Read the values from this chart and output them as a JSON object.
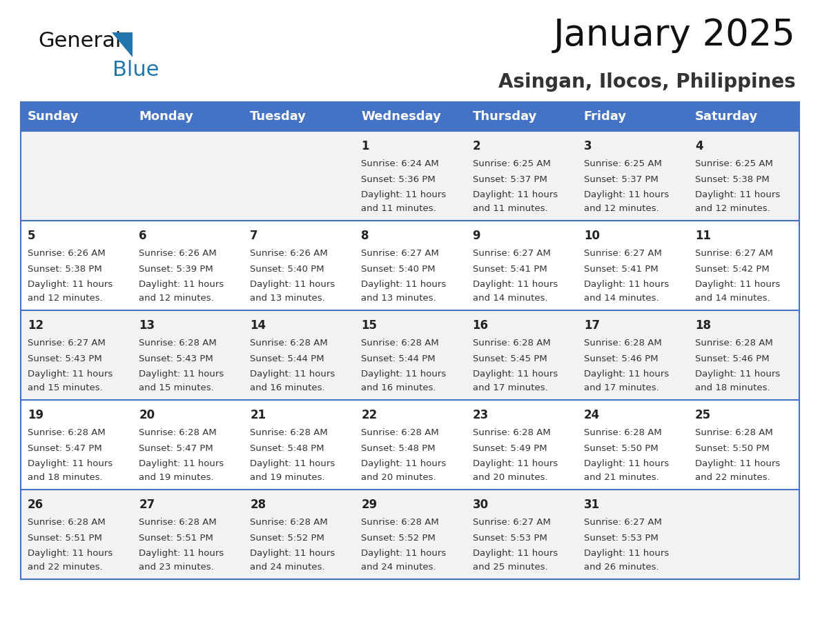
{
  "title": "January 2025",
  "subtitle": "Asingan, Ilocos, Philippines",
  "days_of_week": [
    "Sunday",
    "Monday",
    "Tuesday",
    "Wednesday",
    "Thursday",
    "Friday",
    "Saturday"
  ],
  "header_bg": "#4472C4",
  "header_text": "#FFFFFF",
  "row_bg_odd": "#F2F2F2",
  "row_bg_even": "#FFFFFF",
  "separator_color": "#4472C4",
  "calendar": [
    [
      null,
      null,
      null,
      {
        "day": 1,
        "sunrise": "6:24 AM",
        "sunset": "5:36 PM",
        "daylight": "11 hours and 11 minutes."
      },
      {
        "day": 2,
        "sunrise": "6:25 AM",
        "sunset": "5:37 PM",
        "daylight": "11 hours and 11 minutes."
      },
      {
        "day": 3,
        "sunrise": "6:25 AM",
        "sunset": "5:37 PM",
        "daylight": "11 hours and 12 minutes."
      },
      {
        "day": 4,
        "sunrise": "6:25 AM",
        "sunset": "5:38 PM",
        "daylight": "11 hours and 12 minutes."
      }
    ],
    [
      {
        "day": 5,
        "sunrise": "6:26 AM",
        "sunset": "5:38 PM",
        "daylight": "11 hours and 12 minutes."
      },
      {
        "day": 6,
        "sunrise": "6:26 AM",
        "sunset": "5:39 PM",
        "daylight": "11 hours and 12 minutes."
      },
      {
        "day": 7,
        "sunrise": "6:26 AM",
        "sunset": "5:40 PM",
        "daylight": "11 hours and 13 minutes."
      },
      {
        "day": 8,
        "sunrise": "6:27 AM",
        "sunset": "5:40 PM",
        "daylight": "11 hours and 13 minutes."
      },
      {
        "day": 9,
        "sunrise": "6:27 AM",
        "sunset": "5:41 PM",
        "daylight": "11 hours and 14 minutes."
      },
      {
        "day": 10,
        "sunrise": "6:27 AM",
        "sunset": "5:41 PM",
        "daylight": "11 hours and 14 minutes."
      },
      {
        "day": 11,
        "sunrise": "6:27 AM",
        "sunset": "5:42 PM",
        "daylight": "11 hours and 14 minutes."
      }
    ],
    [
      {
        "day": 12,
        "sunrise": "6:27 AM",
        "sunset": "5:43 PM",
        "daylight": "11 hours and 15 minutes."
      },
      {
        "day": 13,
        "sunrise": "6:28 AM",
        "sunset": "5:43 PM",
        "daylight": "11 hours and 15 minutes."
      },
      {
        "day": 14,
        "sunrise": "6:28 AM",
        "sunset": "5:44 PM",
        "daylight": "11 hours and 16 minutes."
      },
      {
        "day": 15,
        "sunrise": "6:28 AM",
        "sunset": "5:44 PM",
        "daylight": "11 hours and 16 minutes."
      },
      {
        "day": 16,
        "sunrise": "6:28 AM",
        "sunset": "5:45 PM",
        "daylight": "11 hours and 17 minutes."
      },
      {
        "day": 17,
        "sunrise": "6:28 AM",
        "sunset": "5:46 PM",
        "daylight": "11 hours and 17 minutes."
      },
      {
        "day": 18,
        "sunrise": "6:28 AM",
        "sunset": "5:46 PM",
        "daylight": "11 hours and 18 minutes."
      }
    ],
    [
      {
        "day": 19,
        "sunrise": "6:28 AM",
        "sunset": "5:47 PM",
        "daylight": "11 hours and 18 minutes."
      },
      {
        "day": 20,
        "sunrise": "6:28 AM",
        "sunset": "5:47 PM",
        "daylight": "11 hours and 19 minutes."
      },
      {
        "day": 21,
        "sunrise": "6:28 AM",
        "sunset": "5:48 PM",
        "daylight": "11 hours and 19 minutes."
      },
      {
        "day": 22,
        "sunrise": "6:28 AM",
        "sunset": "5:48 PM",
        "daylight": "11 hours and 20 minutes."
      },
      {
        "day": 23,
        "sunrise": "6:28 AM",
        "sunset": "5:49 PM",
        "daylight": "11 hours and 20 minutes."
      },
      {
        "day": 24,
        "sunrise": "6:28 AM",
        "sunset": "5:50 PM",
        "daylight": "11 hours and 21 minutes."
      },
      {
        "day": 25,
        "sunrise": "6:28 AM",
        "sunset": "5:50 PM",
        "daylight": "11 hours and 22 minutes."
      }
    ],
    [
      {
        "day": 26,
        "sunrise": "6:28 AM",
        "sunset": "5:51 PM",
        "daylight": "11 hours and 22 minutes."
      },
      {
        "day": 27,
        "sunrise": "6:28 AM",
        "sunset": "5:51 PM",
        "daylight": "11 hours and 23 minutes."
      },
      {
        "day": 28,
        "sunrise": "6:28 AM",
        "sunset": "5:52 PM",
        "daylight": "11 hours and 24 minutes."
      },
      {
        "day": 29,
        "sunrise": "6:28 AM",
        "sunset": "5:52 PM",
        "daylight": "11 hours and 24 minutes."
      },
      {
        "day": 30,
        "sunrise": "6:27 AM",
        "sunset": "5:53 PM",
        "daylight": "11 hours and 25 minutes."
      },
      {
        "day": 31,
        "sunrise": "6:27 AM",
        "sunset": "5:53 PM",
        "daylight": "11 hours and 26 minutes."
      },
      null
    ]
  ],
  "logo_triangle_color": "#2176AE",
  "logo_blue_color": "#2176AE",
  "title_fontsize": 38,
  "subtitle_fontsize": 20,
  "header_fontsize": 13,
  "day_num_fontsize": 12,
  "cell_fontsize": 9.5
}
